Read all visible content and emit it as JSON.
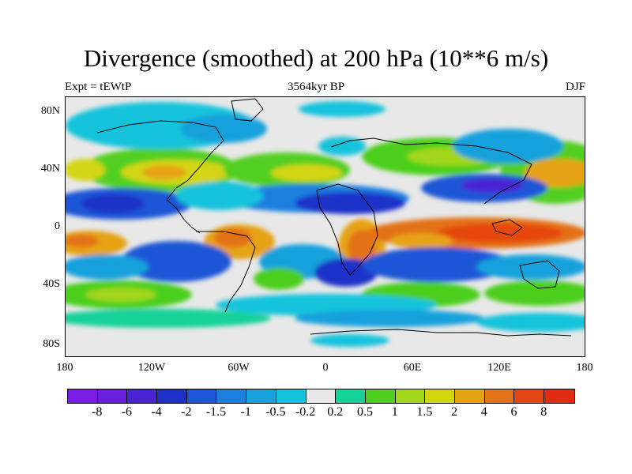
{
  "title": "Divergence (smoothed) at 200 hPa (10**6 m/s)",
  "left_label": "Expt = tEWtP",
  "center_label": "3564kyr BP",
  "right_label": "DJF",
  "lat_labels": [
    "80N",
    "40N",
    "0",
    "40S",
    "80S"
  ],
  "lon_labels": [
    "180",
    "120W",
    "60W",
    "0",
    "60E",
    "120E",
    "180"
  ],
  "colorbar": {
    "colors": [
      "#7a1ee6",
      "#6a1fdf",
      "#4a22d4",
      "#1e30c8",
      "#1d56d6",
      "#1b7fe0",
      "#19a1dc",
      "#12c3dc",
      "#e8e8e8",
      "#14d29a",
      "#4ccf1f",
      "#a3d61a",
      "#d3d512",
      "#e6a312",
      "#e37218",
      "#e5460f",
      "#e22c12"
    ],
    "labels": [
      "-8",
      "-6",
      "-4",
      "-2",
      "-1.5",
      "-1",
      "-0.5",
      "-0.2",
      "0.2",
      "0.5",
      "1",
      "1.5",
      "2",
      "4",
      "6",
      "8"
    ]
  }
}
